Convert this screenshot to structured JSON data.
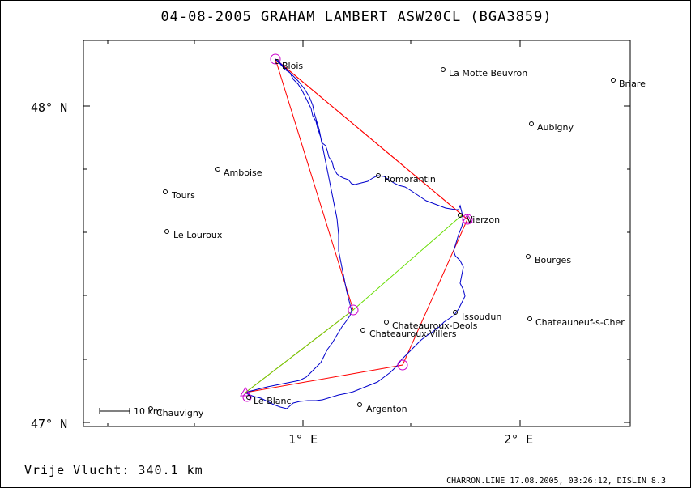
{
  "title": "04-08-2005    GRAHAM LAMBERT    ASW20CL (BGA3859)",
  "axes": {
    "lat_top": "48° N",
    "lat_bottom": "47° N",
    "lon_1": "1° E",
    "lon_2": "2° E"
  },
  "scale_bar_label": "10 km",
  "towns": [
    {
      "name": "Blois"
    },
    {
      "name": "La Motte Beuvron"
    },
    {
      "name": "Briare"
    },
    {
      "name": "Aubigny"
    },
    {
      "name": "Amboise"
    },
    {
      "name": "Romorantin"
    },
    {
      "name": "Tours"
    },
    {
      "name": "Vierzon"
    },
    {
      "name": "Le Louroux"
    },
    {
      "name": "Bourges"
    },
    {
      "name": "Issoudun"
    },
    {
      "name": "Chateauroux-Deols"
    },
    {
      "name": "Chateauneuf-s-Cher"
    },
    {
      "name": "Chateauroux-Villers"
    },
    {
      "name": "Le Blanc"
    },
    {
      "name": "Argenton"
    },
    {
      "name": "Chauvigny"
    }
  ],
  "colors": {
    "track": "#0000cc",
    "task_legs": "#ff0000",
    "start_finish_line": "#66dd00",
    "turnpoint_markers": "#cc00cc"
  },
  "footer": {
    "distance": "Vrije Vlucht:  340.1 km",
    "credit": "CHARRON.LINE 17.08.2005, 03:26:12, DISLIN 8.3"
  }
}
